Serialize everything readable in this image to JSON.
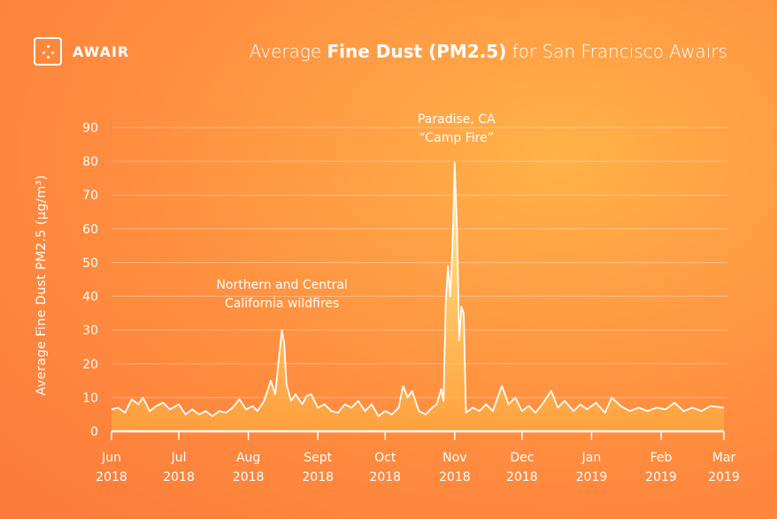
{
  "brand": {
    "name": "AWAIR"
  },
  "title": {
    "prefix": "Average ",
    "bold": "Fine Dust (PM2.5)",
    "suffix": " for San Francisco Awairs"
  },
  "chart_data": {
    "type": "area",
    "ylabel": "Average Fine Dust PM2.5 (µg/m³)",
    "xlabel": "",
    "ylim": [
      0,
      90
    ],
    "y_ticks": [
      0,
      10,
      20,
      30,
      40,
      50,
      60,
      70,
      80,
      90
    ],
    "x_ticks": [
      {
        "date": "2018-06-01",
        "month": "Jun",
        "year": "2018"
      },
      {
        "date": "2018-07-01",
        "month": "Jul",
        "year": "2018"
      },
      {
        "date": "2018-08-01",
        "month": "Aug",
        "year": "2018"
      },
      {
        "date": "2018-09-01",
        "month": "Sept",
        "year": "2018"
      },
      {
        "date": "2018-10-01",
        "month": "Oct",
        "year": "2018"
      },
      {
        "date": "2018-11-01",
        "month": "Nov",
        "year": "2018"
      },
      {
        "date": "2018-12-01",
        "month": "Dec",
        "year": "2018"
      },
      {
        "date": "2019-01-01",
        "month": "Jan",
        "year": "2019"
      },
      {
        "date": "2019-02-01",
        "month": "Feb",
        "year": "2019"
      },
      {
        "date": "2019-03-01",
        "month": "Mar",
        "year": "2019"
      }
    ],
    "grid": true,
    "colors": {
      "line": "#ffffff",
      "fill_top": "#fff6a8",
      "fill_bottom": "#ffb23f"
    },
    "series": [
      {
        "points": [
          [
            "2018-06-01",
            6.5
          ],
          [
            "2018-06-04",
            7
          ],
          [
            "2018-06-07",
            5.5
          ],
          [
            "2018-06-10",
            9.5
          ],
          [
            "2018-06-13",
            8
          ],
          [
            "2018-06-15",
            10
          ],
          [
            "2018-06-18",
            6
          ],
          [
            "2018-06-21",
            7.5
          ],
          [
            "2018-06-24",
            8.5
          ],
          [
            "2018-06-27",
            6.5
          ],
          [
            "2018-07-01",
            8
          ],
          [
            "2018-07-04",
            5
          ],
          [
            "2018-07-07",
            6.5
          ],
          [
            "2018-07-10",
            5
          ],
          [
            "2018-07-13",
            6
          ],
          [
            "2018-07-16",
            4.5
          ],
          [
            "2018-07-19",
            6
          ],
          [
            "2018-07-22",
            5.5
          ],
          [
            "2018-07-25",
            7
          ],
          [
            "2018-07-28",
            9.5
          ],
          [
            "2018-07-31",
            6.5
          ],
          [
            "2018-08-03",
            7.5
          ],
          [
            "2018-08-05",
            6
          ],
          [
            "2018-08-08",
            9
          ],
          [
            "2018-08-11",
            15
          ],
          [
            "2018-08-13",
            11
          ],
          [
            "2018-08-15",
            24
          ],
          [
            "2018-08-16",
            30
          ],
          [
            "2018-08-17",
            26
          ],
          [
            "2018-08-18",
            14
          ],
          [
            "2018-08-20",
            9
          ],
          [
            "2018-08-22",
            11
          ],
          [
            "2018-08-25",
            8
          ],
          [
            "2018-08-27",
            10.5
          ],
          [
            "2018-08-29",
            11
          ],
          [
            "2018-09-01",
            7
          ],
          [
            "2018-09-04",
            8
          ],
          [
            "2018-09-07",
            6
          ],
          [
            "2018-09-10",
            5.5
          ],
          [
            "2018-09-13",
            8
          ],
          [
            "2018-09-16",
            7
          ],
          [
            "2018-09-19",
            9
          ],
          [
            "2018-09-22",
            6
          ],
          [
            "2018-09-25",
            8
          ],
          [
            "2018-09-28",
            4.5
          ],
          [
            "2018-10-01",
            6
          ],
          [
            "2018-10-04",
            5
          ],
          [
            "2018-10-07",
            7
          ],
          [
            "2018-10-09",
            13.5
          ],
          [
            "2018-10-11",
            10
          ],
          [
            "2018-10-13",
            12
          ],
          [
            "2018-10-16",
            6
          ],
          [
            "2018-10-19",
            5
          ],
          [
            "2018-10-22",
            7
          ],
          [
            "2018-10-24",
            8
          ],
          [
            "2018-10-26",
            12.5
          ],
          [
            "2018-10-27",
            9
          ],
          [
            "2018-10-28",
            38
          ],
          [
            "2018-10-29",
            49
          ],
          [
            "2018-10-30",
            40
          ],
          [
            "2018-10-31",
            55
          ],
          [
            "2018-11-01",
            79.5
          ],
          [
            "2018-11-02",
            60
          ],
          [
            "2018-11-03",
            27
          ],
          [
            "2018-11-04",
            37
          ],
          [
            "2018-11-05",
            35
          ],
          [
            "2018-11-06",
            5.5
          ],
          [
            "2018-11-09",
            7
          ],
          [
            "2018-11-12",
            6
          ],
          [
            "2018-11-15",
            8
          ],
          [
            "2018-11-18",
            6
          ],
          [
            "2018-11-22",
            13.5
          ],
          [
            "2018-11-25",
            8
          ],
          [
            "2018-11-28",
            10
          ],
          [
            "2018-12-01",
            6
          ],
          [
            "2018-12-04",
            7.5
          ],
          [
            "2018-12-07",
            5.5
          ],
          [
            "2018-12-10",
            8
          ],
          [
            "2018-12-14",
            12
          ],
          [
            "2018-12-17",
            7
          ],
          [
            "2018-12-20",
            9
          ],
          [
            "2018-12-24",
            6
          ],
          [
            "2018-12-27",
            8
          ],
          [
            "2018-12-30",
            6.5
          ],
          [
            "2019-01-03",
            8.5
          ],
          [
            "2019-01-07",
            5.5
          ],
          [
            "2019-01-10",
            10
          ],
          [
            "2019-01-14",
            7.5
          ],
          [
            "2019-01-18",
            6
          ],
          [
            "2019-01-22",
            7
          ],
          [
            "2019-01-26",
            6
          ],
          [
            "2019-01-30",
            7
          ],
          [
            "2019-02-03",
            6.5
          ],
          [
            "2019-02-07",
            8.5
          ],
          [
            "2019-02-11",
            6
          ],
          [
            "2019-02-15",
            7
          ],
          [
            "2019-02-19",
            6
          ],
          [
            "2019-02-23",
            7.5
          ],
          [
            "2019-03-01",
            7
          ]
        ]
      }
    ],
    "annotations": [
      {
        "lines": [
          "Northern and Central",
          "California wildfires"
        ],
        "date": "2018-08-16"
      },
      {
        "lines": [
          "Paradise, CA",
          "“Camp Fire”"
        ],
        "date": "2018-11-01"
      }
    ]
  }
}
